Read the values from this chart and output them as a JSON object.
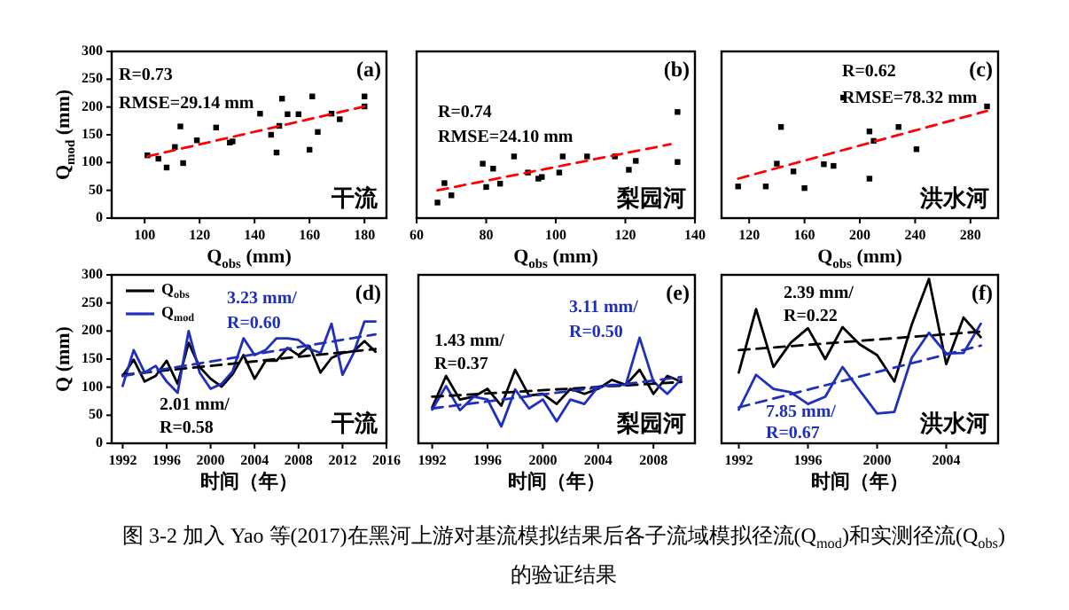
{
  "chart_data": [
    {
      "type": "scatter",
      "xlabel": "Q$_{obs}$ (mm)",
      "ylabel": "Q$_{mod}$ (mm)",
      "xlim": [
        88,
        188
      ],
      "xticks": [
        100,
        120,
        140,
        160,
        180
      ],
      "ylim": [
        0,
        300
      ],
      "yticks": [
        0,
        50,
        100,
        150,
        200,
        250,
        300
      ],
      "annotations": [
        "(a)",
        "干流",
        "R=0.73",
        "RMSE=29.14 mm"
      ],
      "series": [
        {
          "color": "#000000",
          "marker": "square",
          "x": [
            101,
            105,
            108,
            111,
            113,
            114,
            119,
            126,
            131,
            132,
            142,
            146,
            148,
            149,
            150,
            152,
            156,
            160,
            161,
            163,
            168,
            171,
            180,
            180
          ],
          "values": [
            113,
            107,
            91,
            128,
            165,
            99,
            140,
            163,
            136,
            138,
            188,
            150,
            118,
            166,
            215,
            187,
            187,
            123,
            219,
            155,
            188,
            178,
            219,
            201
          ]
        },
        {
          "type": "line",
          "color": "#ff0000",
          "line_style": "dashed",
          "x": [
            101,
            180
          ],
          "values": [
            111,
            201
          ]
        }
      ]
    },
    {
      "type": "scatter",
      "xlabel": "Q$_{obs}$ (mm)",
      "xlim": [
        60,
        140
      ],
      "xticks": [
        60,
        80,
        100,
        120,
        140
      ],
      "ylim": [
        0,
        300
      ],
      "tick_labels": "x",
      "annotations": [
        "(b)",
        "梨园河",
        "R=0.74",
        "RMSE=24.10 mm"
      ],
      "series": [
        {
          "color": "#000000",
          "marker": "square",
          "x": [
            66,
            68,
            70,
            80,
            79,
            82,
            84,
            88,
            92,
            95,
            96,
            101,
            102,
            109,
            117,
            121,
            123,
            135,
            135
          ],
          "values": [
            28,
            63,
            41,
            56,
            98,
            89,
            62,
            111,
            82,
            71,
            74,
            82,
            111,
            111,
            111,
            87,
            103,
            191,
            101
          ]
        },
        {
          "type": "line",
          "color": "#ff0000",
          "line_style": "dashed",
          "x": [
            66,
            133
          ],
          "values": [
            50,
            133
          ]
        }
      ]
    },
    {
      "type": "scatter",
      "xlabel": "Q$_{obs}$ (mm)",
      "xlim": [
        100,
        300
      ],
      "xticks": [
        120,
        160,
        200,
        240,
        280
      ],
      "ylim": [
        0,
        300
      ],
      "tick_labels": "x",
      "annotations": [
        "(c)",
        "洪水河",
        "R=0.62",
        "RMSE=78.32 mm"
      ],
      "series": [
        {
          "color": "#000000",
          "marker": "square",
          "x": [
            112,
            132,
            140,
            143,
            152,
            160,
            174,
            181,
            188,
            207,
            207,
            210,
            228,
            241,
            292
          ],
          "values": [
            57,
            57,
            98,
            164,
            84,
            54,
            97,
            94,
            217,
            71,
            156,
            139,
            164,
            124,
            201
          ]
        },
        {
          "type": "line",
          "color": "#ff0000",
          "line_style": "dashed",
          "x": [
            112,
            292
          ],
          "values": [
            71,
            193
          ]
        }
      ]
    },
    {
      "type": "line",
      "xlabel": "时间（年）",
      "ylabel": "Q (mm)",
      "xlim": [
        1991,
        2016
      ],
      "xticks": [
        1992,
        1996,
        2000,
        2004,
        2008,
        2012,
        2016
      ],
      "ylim": [
        0,
        300
      ],
      "yticks": [
        0,
        50,
        100,
        150,
        200,
        250,
        300
      ],
      "legend": "top left",
      "annotations": [
        "(d)",
        "干流",
        "3.23 mm/",
        "R=0.60",
        "2.01 mm/",
        "R=0.58"
      ],
      "series": [
        {
          "name": "Q$_{obs}$",
          "color": "#000000",
          "x": [
            1992,
            1993,
            1994,
            1995,
            1996,
            1997,
            1998,
            1999,
            2000,
            2001,
            2002,
            2003,
            2004,
            2005,
            2006,
            2007,
            2008,
            2009,
            2010,
            2011,
            2012,
            2013,
            2014,
            2015
          ],
          "values": [
            120,
            149,
            110,
            120,
            147,
            106,
            179,
            136,
            115,
            101,
            123,
            157,
            115,
            147,
            147,
            170,
            157,
            173,
            126,
            152,
            161,
            164,
            182,
            163
          ]
        },
        {
          "name": "Q$_{mod}$",
          "color": "#1f2fbf",
          "x": [
            1992,
            1993,
            1994,
            1995,
            1996,
            1997,
            1998,
            1999,
            2000,
            2001,
            2002,
            2003,
            2004,
            2005,
            2006,
            2007,
            2008,
            2009,
            2010,
            2011,
            2012,
            2013,
            2014,
            2015
          ],
          "values": [
            102,
            166,
            126,
            138,
            110,
            90,
            200,
            126,
            97,
            106,
            128,
            187,
            157,
            166,
            187,
            187,
            184,
            168,
            161,
            213,
            122,
            160,
            217,
            217
          ]
        },
        {
          "color": "#000000",
          "line_style": "dashed",
          "x": [
            1992,
            2015
          ],
          "values": [
            122,
            168
          ]
        },
        {
          "color": "#1f2fbf",
          "line_style": "dashed",
          "x": [
            1992,
            2015
          ],
          "values": [
            120,
            194
          ]
        }
      ]
    },
    {
      "type": "line",
      "xlabel": "时间（年）",
      "xlim": [
        1991,
        2011
      ],
      "xticks": [
        1992,
        1996,
        2000,
        2004,
        2008
      ],
      "ylim": [
        0,
        300
      ],
      "tick_labels": "x",
      "annotations": [
        "(e)",
        "梨园河",
        "1.43 mm/",
        "R=0.37",
        "3.11 mm/",
        "R=0.50"
      ],
      "series": [
        {
          "color": "#000000",
          "x": [
            1992,
            1993,
            1994,
            1995,
            1996,
            1997,
            1998,
            1999,
            2000,
            2001,
            2002,
            2003,
            2004,
            2005,
            2006,
            2007,
            2008,
            2009,
            2010
          ],
          "values": [
            64,
            120,
            78,
            83,
            97,
            67,
            131,
            85,
            88,
            70,
            97,
            88,
            97,
            113,
            104,
            131,
            88,
            120,
            110
          ]
        },
        {
          "color": "#1f2fbf",
          "x": [
            1992,
            1993,
            1994,
            1995,
            1996,
            1997,
            1998,
            1999,
            2000,
            2001,
            2002,
            2003,
            2004,
            2005,
            2006,
            2007,
            2008,
            2009,
            2010
          ],
          "values": [
            60,
            102,
            59,
            83,
            78,
            30,
            96,
            62,
            78,
            39,
            78,
            70,
            101,
            104,
            104,
            188,
            110,
            88,
            114
          ]
        },
        {
          "color": "#000000",
          "line_style": "dashed",
          "x": [
            1992,
            2010
          ],
          "values": [
            83,
            109
          ]
        },
        {
          "color": "#1f2fbf",
          "line_style": "dashed",
          "x": [
            1992,
            2010
          ],
          "values": [
            62,
            118
          ]
        }
      ]
    },
    {
      "type": "line",
      "xlabel": "时间（年）",
      "xlim": [
        1991,
        2007
      ],
      "xticks": [
        1992,
        1996,
        2000,
        2004
      ],
      "ylim": [
        0,
        300
      ],
      "tick_labels": "x",
      "annotations": [
        "(f)",
        "洪水河",
        "2.39 mm/",
        "R=0.22",
        "7.85 mm/",
        "R=0.67",
        "图 3-2  加入 Yao 等(2017)在黑河上游对基流模拟结果后各子流域模拟径流(Q$_{mod}$)和实测径流(Q$_{obs}$)的验证结果"
      ],
      "series": [
        {
          "color": "#000000",
          "x": [
            1992,
            1993,
            1994,
            1995,
            1996,
            1997,
            1998,
            1999,
            2000,
            2001,
            2002,
            2003,
            2004,
            2005,
            2006
          ],
          "values": [
            126,
            239,
            136,
            179,
            205,
            150,
            207,
            176,
            157,
            110,
            211,
            293,
            141,
            224,
            189
          ]
        },
        {
          "color": "#1f2fbf",
          "x": [
            1992,
            1993,
            1994,
            1995,
            1996,
            1997,
            1998,
            1999,
            2000,
            2001,
            2002,
            2003,
            2004,
            2005,
            2006
          ],
          "values": [
            60,
            122,
            97,
            91,
            70,
            83,
            136,
            94,
            53,
            56,
            152,
            197,
            160,
            161,
            213
          ]
        },
        {
          "color": "#000000",
          "line_style": "dashed",
          "x": [
            1992,
            2006
          ],
          "values": [
            166,
            199
          ]
        },
        {
          "color": "#1f2fbf",
          "line_style": "dashed",
          "x": [
            1992,
            2006
          ],
          "values": [
            64,
            174
          ]
        }
      ]
    }
  ]
}
